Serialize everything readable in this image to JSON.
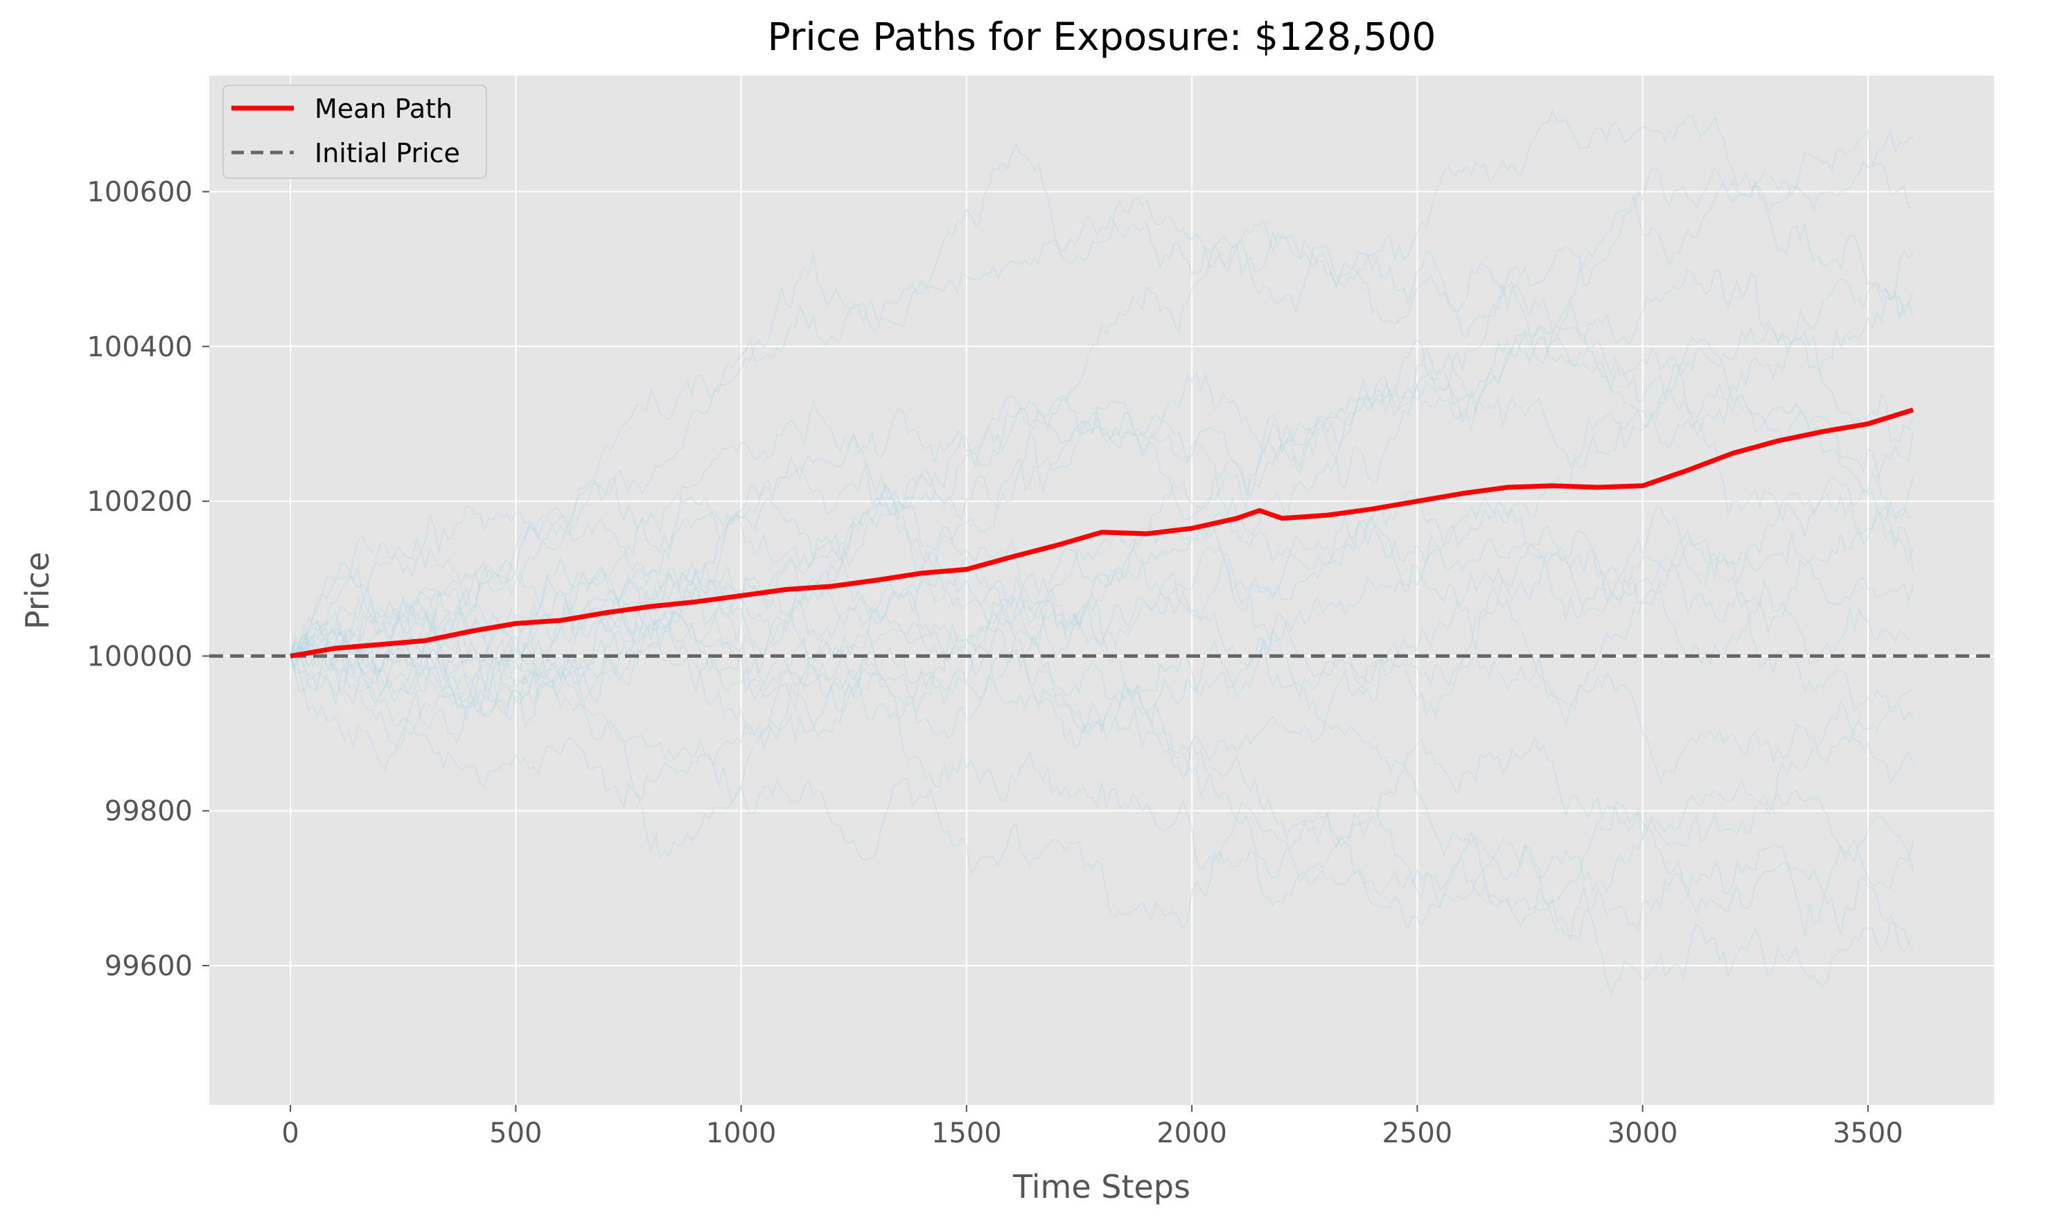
{
  "chart_data": {
    "type": "line",
    "title": "Price Paths for Exposure: $128,500",
    "xlabel": "Time Steps",
    "ylabel": "Price",
    "xlim": [
      -180,
      3780
    ],
    "ylim": [
      99420,
      100750
    ],
    "xticks": [
      0,
      500,
      1000,
      1500,
      2000,
      2500,
      3000,
      3500
    ],
    "yticks": [
      99600,
      99800,
      100000,
      100200,
      100400,
      100600
    ],
    "grid": true,
    "legend_placement": "top-left",
    "legend": [
      {
        "label": "Mean Path",
        "style": "solid",
        "color": "#ff0000"
      },
      {
        "label": "Initial Price",
        "style": "dashed",
        "color": "#666666"
      }
    ],
    "reference_line": {
      "name": "Initial Price",
      "y": 100000,
      "color": "#666666"
    },
    "mean_path": {
      "name": "Mean Path",
      "color": "#ff0000",
      "x": [
        0,
        100,
        200,
        300,
        400,
        500,
        600,
        700,
        800,
        900,
        1000,
        1100,
        1200,
        1300,
        1400,
        1500,
        1600,
        1700,
        1800,
        1900,
        2000,
        2100,
        2150,
        2200,
        2300,
        2400,
        2500,
        2600,
        2700,
        2800,
        2900,
        3000,
        3100,
        3200,
        3300,
        3400,
        3500,
        3600
      ],
      "y": [
        100000,
        100010,
        100015,
        100020,
        100032,
        100042,
        100046,
        100056,
        100064,
        100070,
        100078,
        100086,
        100090,
        100098,
        100107,
        100112,
        100128,
        100143,
        100160,
        100158,
        100165,
        100178,
        100188,
        100178,
        100182,
        100190,
        100200,
        100210,
        100218,
        100220,
        100218,
        100220,
        100240,
        100262,
        100278,
        100290,
        100300,
        100318
      ]
    },
    "simulated_paths": {
      "color": "#add8e6",
      "count": 20,
      "x_max": 3600,
      "start": 100000,
      "end_values": [
        100670,
        100580,
        100520,
        100470,
        100440,
        100310,
        100290,
        100230,
        100180,
        100140,
        100110,
        100090,
        100020,
        99960,
        99920,
        99860,
        99760,
        99720,
        99640,
        99620
      ]
    },
    "colors": {
      "plot_background": "#e5e5e5",
      "grid": "#ffffff"
    }
  }
}
